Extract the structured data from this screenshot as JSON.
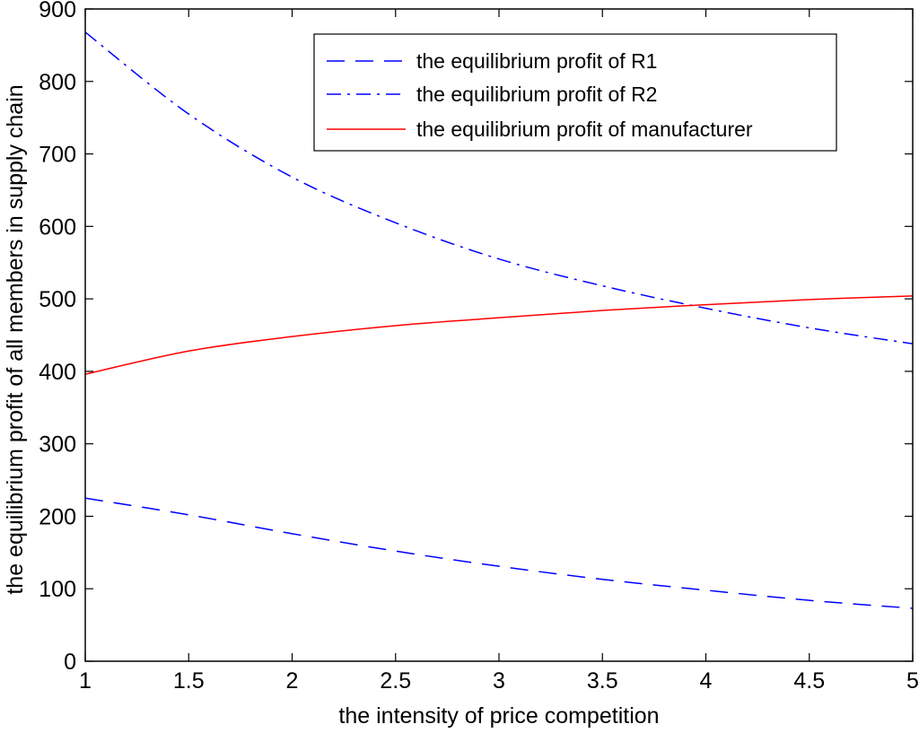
{
  "chart_data": {
    "type": "line",
    "title": "",
    "xlabel": "the intensity of price competition",
    "ylabel": "the equilibrium profit of all members in supply chain",
    "xlim": [
      1,
      5
    ],
    "ylim": [
      0,
      900
    ],
    "xticks": [
      1,
      1.5,
      2,
      2.5,
      3,
      3.5,
      4,
      4.5,
      5
    ],
    "xtick_labels": [
      "1",
      "1.5",
      "2",
      "2.5",
      "3",
      "3.5",
      "4",
      "4.5",
      "5"
    ],
    "yticks": [
      0,
      100,
      200,
      300,
      400,
      500,
      600,
      700,
      800,
      900
    ],
    "ytick_labels": [
      "0",
      "100",
      "200",
      "300",
      "400",
      "500",
      "600",
      "700",
      "800",
      "900"
    ],
    "grid": false,
    "legend_position": "top-right",
    "x": [
      1,
      1.5,
      2,
      2.5,
      3,
      3.5,
      4,
      4.5,
      5
    ],
    "series": [
      {
        "name": "the equilibrium profit of R1",
        "style": "dashed",
        "color": "#0000ff",
        "values": [
          225,
          202,
          176,
          152,
          131,
          113,
          98,
          84,
          73
        ]
      },
      {
        "name": "the equilibrium profit of R2",
        "style": "dashdot",
        "color": "#0000ff",
        "values": [
          868,
          755,
          668,
          605,
          555,
          518,
          487,
          460,
          438
        ]
      },
      {
        "name": "the equilibrium profit of manufacturer",
        "style": "solid",
        "color": "#ff0000",
        "values": [
          396,
          428,
          448,
          463,
          474,
          484,
          492,
          499,
          504
        ]
      }
    ]
  }
}
